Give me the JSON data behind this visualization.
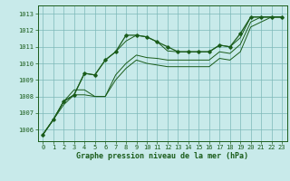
{
  "background_color": "#c8eaea",
  "grid_color": "#7db8b8",
  "line_color": "#1a5c1a",
  "xlabel": "Graphe pression niveau de la mer (hPa)",
  "xlim": [
    -0.5,
    23.5
  ],
  "ylim": [
    1005.3,
    1013.5
  ],
  "yticks": [
    1006,
    1007,
    1008,
    1009,
    1010,
    1011,
    1012,
    1013
  ],
  "xticks": [
    0,
    1,
    2,
    3,
    4,
    5,
    6,
    7,
    8,
    9,
    10,
    11,
    12,
    13,
    14,
    15,
    16,
    17,
    18,
    19,
    20,
    21,
    22,
    23
  ],
  "series": [
    [
      1005.7,
      1006.6,
      1007.7,
      1008.1,
      1009.4,
      1009.3,
      1010.2,
      1010.7,
      1011.7,
      1011.7,
      1011.6,
      1011.3,
      1011.0,
      1010.7,
      1010.7,
      1010.7,
      1010.7,
      1011.1,
      1011.0,
      1011.8,
      1012.8,
      1012.8,
      1012.8,
      1012.8
    ],
    [
      1005.7,
      1006.6,
      1007.7,
      1008.1,
      1009.4,
      1009.3,
      1010.2,
      1010.7,
      1011.35,
      1011.7,
      1011.6,
      1011.3,
      1010.75,
      1010.7,
      1010.7,
      1010.7,
      1010.7,
      1011.1,
      1011.0,
      1011.55,
      1012.8,
      1012.8,
      1012.8,
      1012.8
    ],
    [
      1005.7,
      1006.6,
      1007.7,
      1008.4,
      1008.4,
      1008.0,
      1008.0,
      1009.3,
      1010.0,
      1010.5,
      1010.35,
      1010.3,
      1010.2,
      1010.2,
      1010.2,
      1010.2,
      1010.2,
      1010.7,
      1010.6,
      1011.15,
      1012.5,
      1012.8,
      1012.8,
      1012.8
    ],
    [
      1005.7,
      1006.6,
      1007.5,
      1008.1,
      1008.1,
      1008.0,
      1008.0,
      1009.0,
      1009.7,
      1010.2,
      1010.0,
      1009.9,
      1009.8,
      1009.8,
      1009.8,
      1009.8,
      1009.8,
      1010.3,
      1010.2,
      1010.7,
      1012.2,
      1012.5,
      1012.8,
      1012.8
    ]
  ],
  "marker_series": 0,
  "marker": "D",
  "markersize": 1.8,
  "linewidth_main": 0.9,
  "linewidth_other": 0.7,
  "tick_fontsize": 5.0,
  "xlabel_fontsize": 6.0
}
